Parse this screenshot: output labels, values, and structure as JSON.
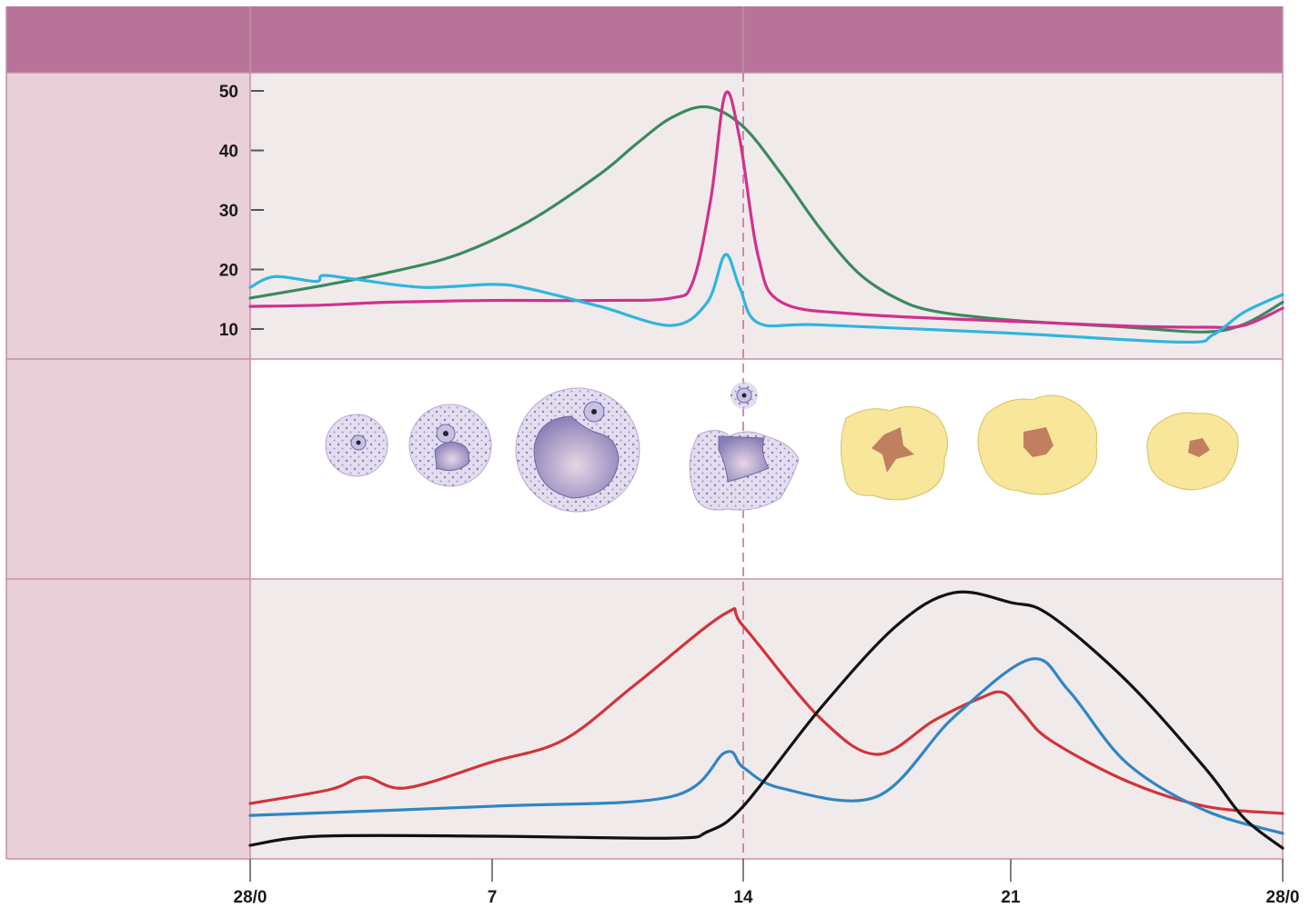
{
  "colors": {
    "header_band": "#b87399",
    "left_column": "#e8cfd8",
    "panel_bg": "#f1eaea",
    "border": "#c590ab"
  },
  "chart_data": [
    {
      "type": "line",
      "panel": "top",
      "ylim": [
        5,
        53
      ],
      "xlim": [
        0,
        28
      ],
      "yticks": [
        50,
        40,
        30,
        20,
        10
      ],
      "ytick_labels": [
        "50",
        "40",
        "30",
        "20",
        "10"
      ],
      "grid": false,
      "reference_line_x": 14,
      "series": [
        {
          "color": "#3a8a5f",
          "points": [
            [
              0,
              15.2
            ],
            [
              2,
              17.2
            ],
            [
              4,
              19.5
            ],
            [
              6,
              22.5
            ],
            [
              8,
              28
            ],
            [
              10,
              36
            ],
            [
              11,
              41
            ],
            [
              12,
              45.5
            ],
            [
              13,
              47.3
            ],
            [
              14,
              44
            ],
            [
              15,
              36
            ],
            [
              16,
              27
            ],
            [
              17,
              19.5
            ],
            [
              18,
              15.2
            ],
            [
              19,
              13
            ],
            [
              21,
              11.5
            ],
            [
              24,
              10.3
            ],
            [
              26,
              9.5
            ],
            [
              27,
              10.8
            ],
            [
              28,
              14.5
            ]
          ]
        },
        {
          "color": "#d0308f",
          "points": [
            [
              0,
              13.8
            ],
            [
              2,
              14
            ],
            [
              4,
              14.5
            ],
            [
              7,
              14.8
            ],
            [
              10,
              14.8
            ],
            [
              12,
              15.2
            ],
            [
              12.6,
              18
            ],
            [
              13.1,
              32
            ],
            [
              13.5,
              49.5
            ],
            [
              13.9,
              42
            ],
            [
              14.4,
              22
            ],
            [
              15,
              14.5
            ],
            [
              17,
              12.5
            ],
            [
              21,
              11.3
            ],
            [
              24,
              10.5
            ],
            [
              26,
              10.3
            ],
            [
              27,
              10.6
            ],
            [
              28,
              13.5
            ]
          ]
        },
        {
          "color": "#2fb5dd",
          "points": [
            [
              0,
              17
            ],
            [
              0.7,
              18.8
            ],
            [
              1.9,
              18
            ],
            [
              2.1,
              19
            ],
            [
              3,
              18.4
            ],
            [
              5,
              17
            ],
            [
              7,
              17.5
            ],
            [
              8,
              16.8
            ],
            [
              10,
              13.8
            ],
            [
              12,
              10.6
            ],
            [
              13,
              14.5
            ],
            [
              13.5,
              22.5
            ],
            [
              13.9,
              17
            ],
            [
              14.4,
              11
            ],
            [
              16,
              10.7
            ],
            [
              21,
              9.3
            ],
            [
              25.4,
              7.8
            ],
            [
              26.2,
              9
            ],
            [
              27,
              12.8
            ],
            [
              28,
              15.8
            ]
          ]
        }
      ]
    },
    {
      "type": "line",
      "panel": "bottom",
      "ylim": [
        0,
        100
      ],
      "xlim": [
        0,
        28
      ],
      "xticks": [
        0,
        7,
        14,
        21,
        28
      ],
      "xtick_labels": [
        "28/0",
        "7",
        "14",
        "21",
        "28/0"
      ],
      "grid": false,
      "reference_line_x": 14,
      "series": [
        {
          "color": "#d0343a",
          "points": [
            [
              0,
              20
            ],
            [
              2.3,
              25
            ],
            [
              3.3,
              29.5
            ],
            [
              4.5,
              25.6
            ],
            [
              7,
              35
            ],
            [
              9,
              43
            ],
            [
              11,
              63
            ],
            [
              13.5,
              88.5
            ],
            [
              14,
              84
            ],
            [
              16,
              51
            ],
            [
              17.5,
              37.7
            ],
            [
              19,
              50
            ],
            [
              20.2,
              58
            ],
            [
              20.8,
              60
            ],
            [
              21.3,
              53
            ],
            [
              22,
              43
            ],
            [
              24,
              28
            ],
            [
              26,
              19
            ],
            [
              28,
              16.4
            ]
          ]
        },
        {
          "color": "#2f86c4",
          "points": [
            [
              0,
              15.7
            ],
            [
              7,
              19
            ],
            [
              12,
              22.5
            ],
            [
              13.5,
              38.4
            ],
            [
              14,
              33
            ],
            [
              15,
              25.5
            ],
            [
              17.5,
              22.5
            ],
            [
              19.5,
              51
            ],
            [
              21.5,
              72
            ],
            [
              22.5,
              60.6
            ],
            [
              24,
              34.4
            ],
            [
              26,
              17.5
            ],
            [
              28,
              9.2
            ]
          ]
        },
        {
          "color": "#111111",
          "points": [
            [
              0,
              4.9
            ],
            [
              2,
              8.2
            ],
            [
              7,
              8.2
            ],
            [
              12,
              7.5
            ],
            [
              13,
              9.8
            ],
            [
              14,
              19
            ],
            [
              16,
              54
            ],
            [
              18,
              84
            ],
            [
              19.5,
              96
            ],
            [
              21,
              92.5
            ],
            [
              22,
              88
            ],
            [
              24,
              64
            ],
            [
              26,
              32.8
            ],
            [
              27,
              14.8
            ],
            [
              28,
              3.9
            ]
          ]
        }
      ]
    }
  ]
}
